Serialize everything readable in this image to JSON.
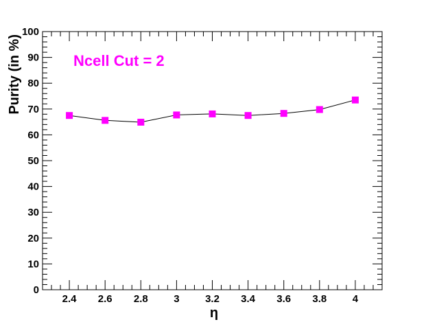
{
  "chart_data": {
    "type": "line",
    "title": "",
    "xlabel": "η",
    "ylabel": "Purity (in %)",
    "annotation": "Ncell Cut = 2",
    "xlim": [
      2.25,
      4.15
    ],
    "ylim": [
      0,
      100
    ],
    "x_ticks": [
      2.4,
      2.6,
      2.8,
      3,
      3.2,
      3.4,
      3.6,
      3.8,
      4
    ],
    "x_tick_labels": [
      "2.4",
      "2.6",
      "2.8",
      "3",
      "3.2",
      "3.4",
      "3.6",
      "3.8",
      "4"
    ],
    "y_ticks": [
      0,
      10,
      20,
      30,
      40,
      50,
      60,
      70,
      80,
      90,
      100
    ],
    "y_tick_labels": [
      "0",
      "10",
      "20",
      "30",
      "40",
      "50",
      "60",
      "70",
      "80",
      "90",
      "100"
    ],
    "grid": false,
    "legend": "none",
    "series": [
      {
        "x": [
          2.4,
          2.6,
          2.8,
          3.0,
          3.2,
          3.4,
          3.6,
          3.8,
          4.0
        ],
        "y": [
          67.5,
          65.6,
          64.9,
          67.7,
          68.1,
          67.5,
          68.3,
          69.8,
          73.5
        ],
        "marker": "square",
        "marker_color": "#ff00ff",
        "line_color": "#000000"
      }
    ]
  }
}
